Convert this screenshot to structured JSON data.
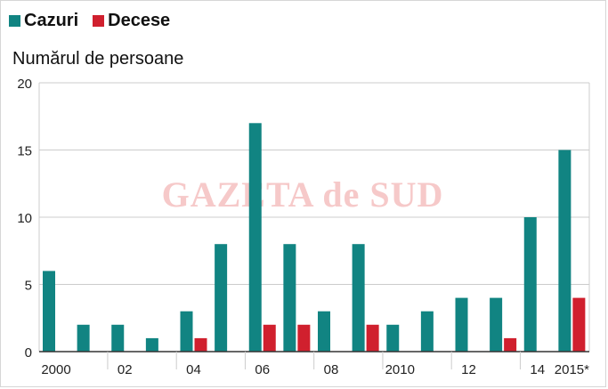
{
  "legend": {
    "series_a": "Cazuri",
    "series_b": "Decese"
  },
  "colors": {
    "cazuri": "#118482",
    "decese": "#d0202e",
    "grid": "#cccccc",
    "watermark": "#f6c9c9"
  },
  "watermark": "GAZETA de SUD",
  "chart_data": {
    "type": "bar",
    "ylabel": "Numărul de persoane",
    "ylim": [
      0,
      20
    ],
    "yticks": [
      0,
      5,
      10,
      15,
      20
    ],
    "grid": true,
    "legend_position": "top-left",
    "x": [
      2000,
      2001,
      2002,
      2003,
      2004,
      2005,
      2006,
      2007,
      2008,
      2009,
      2010,
      2011,
      2012,
      2013,
      2014,
      2015
    ],
    "tick_labels": [
      {
        "year": 2000,
        "label": "2000"
      },
      {
        "year": 2002,
        "label": "02"
      },
      {
        "year": 2004,
        "label": "04"
      },
      {
        "year": 2006,
        "label": "06"
      },
      {
        "year": 2008,
        "label": "08"
      },
      {
        "year": 2010,
        "label": "2010"
      },
      {
        "year": 2012,
        "label": "12"
      },
      {
        "year": 2014,
        "label": "14"
      },
      {
        "year": 2015,
        "label": "2015*"
      }
    ],
    "series": [
      {
        "name": "Cazuri",
        "values": [
          6,
          2,
          2,
          1,
          3,
          8,
          17,
          8,
          3,
          8,
          2,
          3,
          4,
          4,
          10,
          15
        ]
      },
      {
        "name": "Decese",
        "values": [
          0,
          0,
          0,
          0,
          1,
          0,
          2,
          2,
          0,
          2,
          0,
          0,
          0,
          1,
          0,
          4
        ]
      }
    ]
  }
}
